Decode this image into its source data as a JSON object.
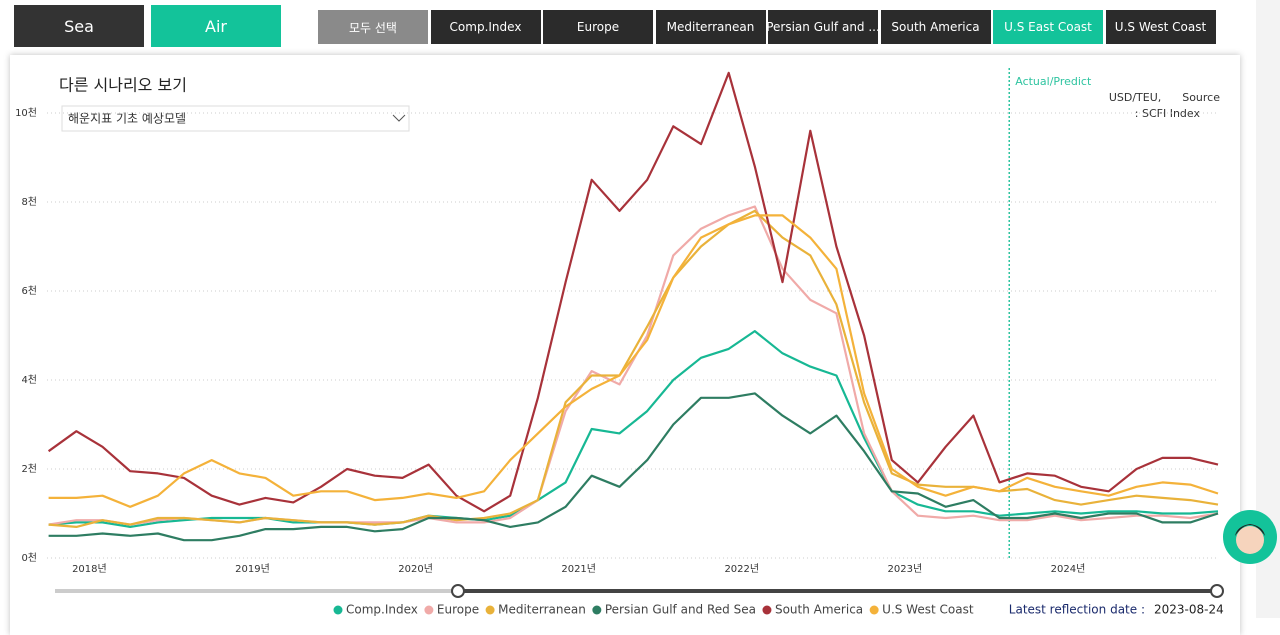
{
  "header": {
    "modes": [
      "Sea",
      "Air"
    ],
    "tabs": [
      "모두 선택",
      "Comp.Index",
      "Europe",
      "Mediterranean",
      "Persian Gulf and ...",
      "South America",
      "U.S East Coast",
      "U.S West Coast"
    ]
  },
  "panel": {
    "title": "다른 시나리오 보기",
    "dropdown": "해운지표 기초 예상모델",
    "unit_note": "USD/TEU,      Source",
    "source": ": SCFI Index",
    "latest_label": "Latest reflection date :",
    "latest_date": "2023-08-24"
  },
  "chart_data": {
    "type": "line",
    "x": [
      2017.75,
      2017.92,
      2018.08,
      2018.25,
      2018.42,
      2018.58,
      2018.75,
      2018.92,
      2019.08,
      2019.25,
      2019.42,
      2019.58,
      2019.75,
      2019.92,
      2020.08,
      2020.25,
      2020.42,
      2020.58,
      2020.75,
      2020.92,
      2021.08,
      2021.25,
      2021.42,
      2021.58,
      2021.75,
      2021.92,
      2022.08,
      2022.25,
      2022.42,
      2022.58,
      2022.75,
      2022.92,
      2023.08,
      2023.25,
      2023.42,
      2023.58,
      2023.75,
      2023.92,
      2024.08,
      2024.25,
      2024.42,
      2024.58,
      2024.75,
      2024.92
    ],
    "xlim": [
      2017.74,
      2024.92
    ],
    "xticks": [
      {
        "value": 2018,
        "label": "2018년"
      },
      {
        "value": 2019,
        "label": "2019년"
      },
      {
        "value": 2020,
        "label": "2020년"
      },
      {
        "value": 2021,
        "label": "2021년"
      },
      {
        "value": 2022,
        "label": "2022년"
      },
      {
        "value": 2023,
        "label": "2023년"
      },
      {
        "value": 2024,
        "label": "2024년"
      }
    ],
    "ylim": [
      0,
      11000
    ],
    "yticks": [
      {
        "value": 0,
        "label": "0천"
      },
      {
        "value": 2000,
        "label": "2천"
      },
      {
        "value": 4000,
        "label": "4천"
      },
      {
        "value": 6000,
        "label": "6천"
      },
      {
        "value": 8000,
        "label": "8천"
      },
      {
        "value": 10000,
        "label": "10천"
      }
    ],
    "grid": true,
    "annotation": {
      "text": "Actual/Predict",
      "x": 2023.64,
      "color": "#2ec4a0"
    },
    "series": [
      {
        "name": "Comp.Index",
        "color": "#17b894",
        "values": [
          750,
          800,
          800,
          700,
          800,
          850,
          900,
          900,
          900,
          800,
          800,
          800,
          750,
          800,
          950,
          900,
          850,
          950,
          1300,
          1700,
          2900,
          2800,
          3300,
          4000,
          4500,
          4700,
          5100,
          4600,
          4300,
          4100,
          2700,
          1500,
          1200,
          1050,
          1050,
          950,
          1000,
          1050,
          1000,
          1050,
          1050,
          1000,
          1000,
          1050
        ]
      },
      {
        "name": "Europe",
        "color": "#f0aaa8",
        "values": [
          750,
          850,
          850,
          750,
          850,
          900,
          850,
          800,
          900,
          850,
          800,
          800,
          800,
          800,
          900,
          800,
          800,
          900,
          1300,
          3300,
          4200,
          3900,
          5000,
          6800,
          7400,
          7700,
          7900,
          6500,
          5800,
          5500,
          2800,
          1500,
          950,
          900,
          950,
          850,
          850,
          950,
          850,
          900,
          950,
          950,
          900,
          1000
        ]
      },
      {
        "name": "Mediterranean",
        "color": "#e9b23a",
        "values": [
          750,
          700,
          850,
          750,
          900,
          900,
          850,
          800,
          900,
          850,
          800,
          800,
          750,
          800,
          950,
          850,
          900,
          1000,
          1300,
          3500,
          4100,
          4100,
          5200,
          6300,
          7000,
          7500,
          7800,
          7200,
          6800,
          5700,
          3500,
          1900,
          1650,
          1600,
          1600,
          1500,
          1550,
          1300,
          1200,
          1300,
          1400,
          1350,
          1300,
          1200
        ]
      },
      {
        "name": "Persian Gulf and Red Sea",
        "color": "#2e7d62",
        "values": [
          500,
          500,
          550,
          500,
          550,
          400,
          400,
          500,
          650,
          650,
          700,
          700,
          600,
          650,
          900,
          900,
          850,
          700,
          800,
          1150,
          1850,
          1600,
          2200,
          3000,
          3600,
          3600,
          3700,
          3200,
          2800,
          3200,
          2400,
          1500,
          1450,
          1150,
          1300,
          900,
          900,
          1000,
          900,
          1000,
          1000,
          800,
          800,
          1000
        ]
      },
      {
        "name": "South America",
        "color": "#a8323a",
        "values": [
          2400,
          2850,
          2500,
          1950,
          1900,
          1800,
          1400,
          1200,
          1350,
          1250,
          1600,
          2000,
          1850,
          1800,
          2100,
          1400,
          1050,
          1400,
          3600,
          6200,
          8500,
          7800,
          8500,
          9700,
          9300,
          10900,
          8800,
          6200,
          9600,
          7000,
          5000,
          2200,
          1700,
          2500,
          3200,
          1700,
          1900,
          1850,
          1600,
          1500,
          2000,
          2250,
          2250,
          2100
        ]
      },
      {
        "name": "U.S West Coast",
        "color": "#f4b23a",
        "values": [
          1350,
          1350,
          1400,
          1150,
          1400,
          1900,
          2200,
          1900,
          1800,
          1400,
          1500,
          1500,
          1300,
          1350,
          1450,
          1350,
          1500,
          2200,
          2800,
          3400,
          3800,
          4100,
          4900,
          6300,
          7200,
          7500,
          7700,
          7700,
          7200,
          6500,
          3700,
          2000,
          1600,
          1400,
          1600,
          1500,
          1800,
          1600,
          1500,
          1400,
          1600,
          1700,
          1650,
          1450
        ]
      }
    ]
  }
}
